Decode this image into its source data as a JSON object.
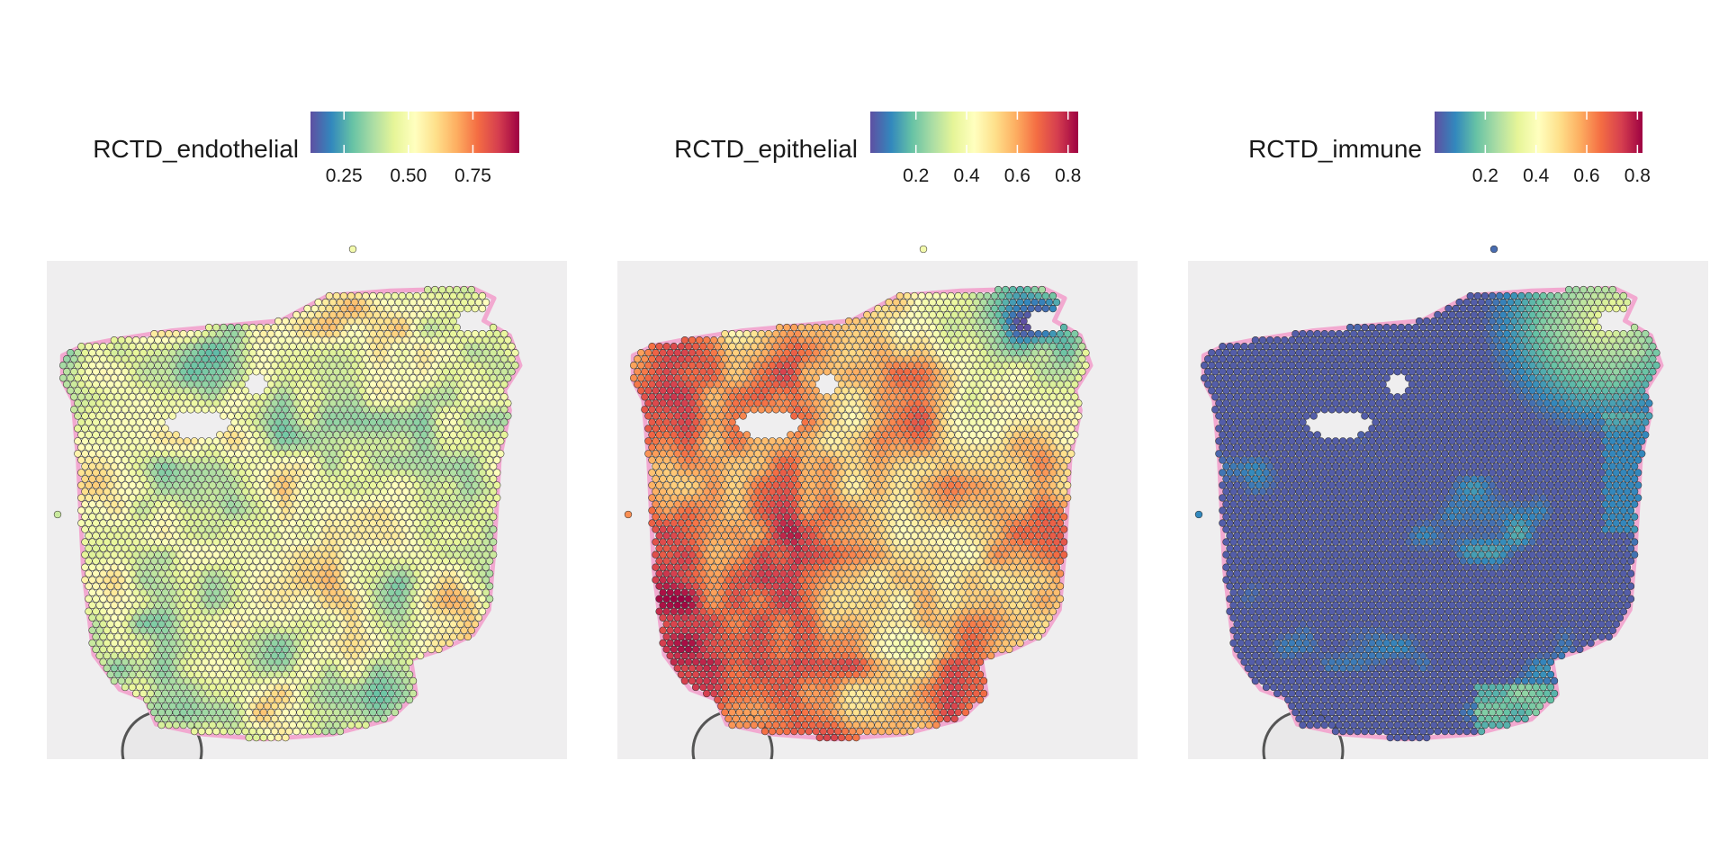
{
  "chart_data": [
    {
      "type": "scatter",
      "title": "",
      "legend_title": "RCTD_endothelial",
      "legend_position": "top",
      "palette": "spectral",
      "color_range": [
        0.12,
        0.93
      ],
      "legend_ticks": [
        {
          "value": 0.25,
          "label": "0.25"
        },
        {
          "value": 0.5,
          "label": "0.50"
        },
        {
          "value": 0.75,
          "label": "0.75"
        }
      ],
      "value_mean": 0.47,
      "value_spread": 0.16,
      "value_trend": "fairly uniform, lower (teal) patches on left-center, scattered high (red) spots",
      "grid": false
    },
    {
      "type": "scatter",
      "title": "",
      "legend_title": "RCTD_epithelial",
      "legend_position": "top",
      "palette": "spectral",
      "color_range": [
        0.02,
        0.84
      ],
      "legend_ticks": [
        {
          "value": 0.2,
          "label": "0.2"
        },
        {
          "value": 0.4,
          "label": "0.4"
        },
        {
          "value": 0.6,
          "label": "0.6"
        },
        {
          "value": 0.8,
          "label": "0.8"
        }
      ],
      "value_mean": 0.55,
      "value_spread": 0.15,
      "value_trend": "high (orange/red) on left and bottom, low (blue) in upper-right corner",
      "grid": false
    },
    {
      "type": "scatter",
      "title": "",
      "legend_title": "RCTD_immune",
      "legend_position": "top",
      "palette": "spectral",
      "color_range": [
        0.0,
        0.82
      ],
      "legend_ticks": [
        {
          "value": 0.2,
          "label": "0.2"
        },
        {
          "value": 0.4,
          "label": "0.4"
        },
        {
          "value": 0.6,
          "label": "0.6"
        },
        {
          "value": 0.8,
          "label": "0.8"
        }
      ],
      "value_mean": 0.04,
      "value_spread": 0.08,
      "value_trend": "mostly near zero (dark blue), higher values in upper-right corner and bottom-right edge",
      "grid": false
    }
  ]
}
